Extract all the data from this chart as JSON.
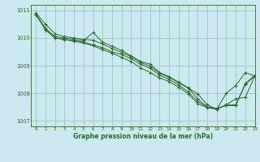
{
  "xlabel": "Graphe pression niveau de la mer (hPa)",
  "bg_color": "#cce8f0",
  "grid_color": "#99ccbb",
  "line_color": "#2d6b2d",
  "xlim": [
    -0.5,
    23
  ],
  "ylim": [
    1006.8,
    1011.2
  ],
  "yticks": [
    1007,
    1008,
    1009,
    1010,
    1011
  ],
  "xticks": [
    0,
    1,
    2,
    3,
    4,
    5,
    6,
    7,
    8,
    9,
    10,
    11,
    12,
    13,
    14,
    15,
    16,
    17,
    18,
    19,
    20,
    21,
    22,
    23
  ],
  "series": [
    [
      1010.85,
      1010.35,
      1010.05,
      1010.0,
      1009.95,
      1009.9,
      1010.2,
      1009.85,
      1009.7,
      1009.55,
      1009.35,
      1009.15,
      1009.05,
      1008.75,
      1008.6,
      1008.4,
      1008.2,
      1007.8,
      1007.5,
      1007.45,
      1007.55,
      1007.55,
      1008.35,
      1008.65
    ],
    [
      1010.85,
      1010.3,
      1010.0,
      1009.95,
      1009.9,
      1009.85,
      1009.75,
      1009.65,
      1009.5,
      1009.4,
      1009.25,
      1009.05,
      1008.9,
      1008.65,
      1008.5,
      1008.3,
      1008.05,
      1007.7,
      1007.5,
      1007.43,
      1007.58,
      1007.8,
      1007.85,
      1008.62
    ],
    [
      1010.85,
      1010.3,
      1010.0,
      1009.95,
      1009.88,
      1009.82,
      1009.72,
      1009.58,
      1009.45,
      1009.3,
      1009.15,
      1008.92,
      1008.75,
      1008.55,
      1008.42,
      1008.22,
      1007.98,
      1007.62,
      1007.48,
      1007.42,
      1008.0,
      1008.28,
      1008.75,
      1008.62
    ],
    [
      1010.9,
      1010.5,
      1010.15,
      1010.05,
      1010.0,
      1009.95,
      1009.92,
      1009.78,
      1009.62,
      1009.48,
      1009.32,
      1009.12,
      1008.97,
      1008.72,
      1008.58,
      1008.38,
      1008.18,
      1007.98,
      1007.58,
      1007.42,
      1007.58,
      1007.58,
      1008.32,
      1008.62
    ]
  ]
}
